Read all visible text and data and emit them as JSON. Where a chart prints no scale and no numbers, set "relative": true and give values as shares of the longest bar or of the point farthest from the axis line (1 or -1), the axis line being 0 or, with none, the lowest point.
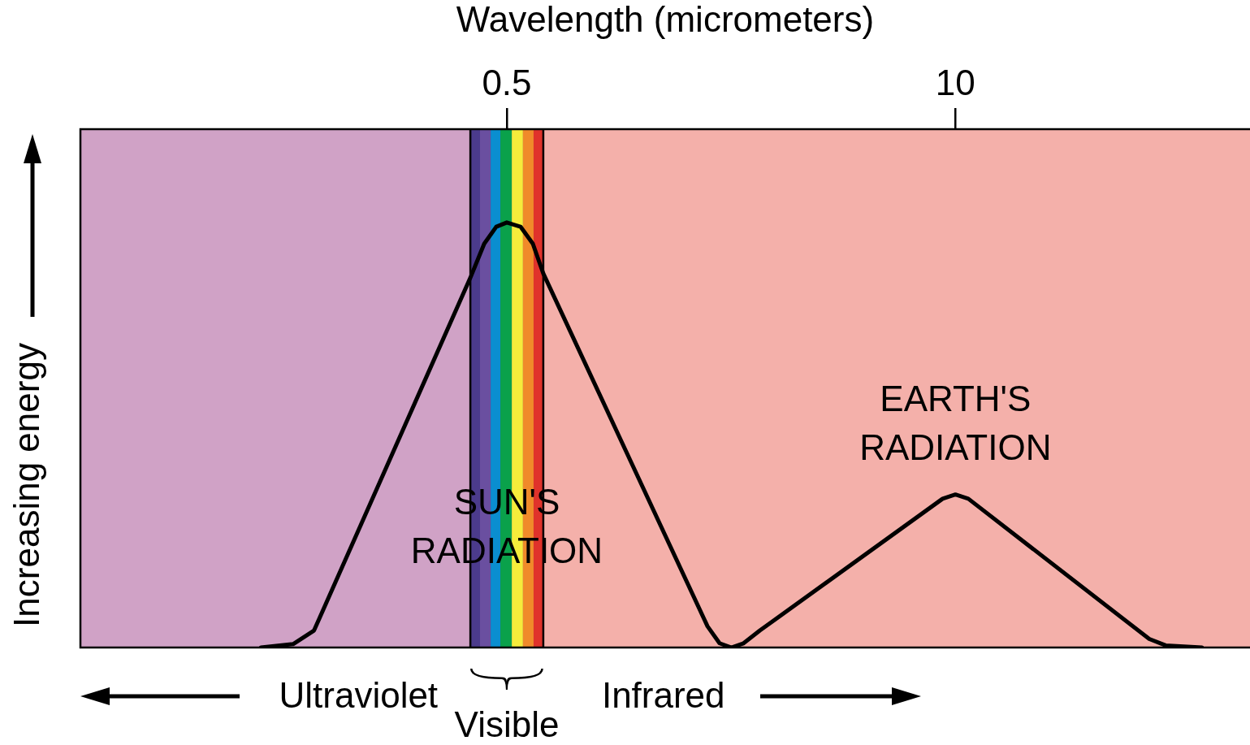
{
  "chart_data": {
    "type": "line",
    "xlabel": "Wavelength (micrometers)",
    "ylabel": "Increasing energy",
    "log": "x",
    "relative": true,
    "grid": false,
    "legend": false,
    "marker": "none",
    "xlim": [
      0.029,
      71.5
    ],
    "xticks": [
      0.5,
      10
    ],
    "series": [
      {
        "color": "#000000",
        "x": [
          0.0968,
          0.12,
          0.138,
          0.392,
          0.43,
          0.466,
          0.5,
          0.548,
          0.595,
          0.638,
          1.91,
          2.07,
          2.24
        ],
        "values": [
          0,
          0.008,
          0.04,
          0.87,
          0.95,
          0.99,
          1,
          0.99,
          0.95,
          0.88,
          0.05,
          0.01,
          0
        ]
      },
      {
        "color": "#000000",
        "x": [
          2.24,
          2.43,
          2.71,
          9.18,
          10,
          10.9,
          36.5,
          40.7,
          51.9
        ],
        "values": [
          0,
          0.01,
          0.04,
          0.35,
          0.36,
          0.35,
          0.02,
          0.005,
          0
        ]
      }
    ],
    "bands": [
      {
        "axis": "x",
        "from": 0.029,
        "to": 0.392,
        "label": "Ultraviolet",
        "color": "#d0a2c6"
      },
      {
        "axis": "x",
        "from": 0.638,
        "to": 71.5,
        "label": "Infrared",
        "color": "#f4b0aa"
      },
      {
        "axis": "x",
        "from": 0.392,
        "to": 0.638,
        "label": "Visible",
        "color": "#4b3b8c"
      },
      {
        "axis": "x",
        "from": 0.418,
        "to": 0.449,
        "color": "#6a4fa0"
      },
      {
        "axis": "x",
        "from": 0.449,
        "to": 0.479,
        "color": "#0a8ed0"
      },
      {
        "axis": "x",
        "from": 0.479,
        "to": 0.517,
        "color": "#0aa14b"
      },
      {
        "axis": "x",
        "from": 0.517,
        "to": 0.557,
        "color": "#f6ec3b"
      },
      {
        "axis": "x",
        "from": 0.557,
        "to": 0.598,
        "color": "#f08a2a"
      },
      {
        "axis": "x",
        "from": 0.598,
        "to": 0.638,
        "color": "#e0322b"
      }
    ],
    "ref_lines": [
      {
        "axis": "x",
        "value": 0.392,
        "color": "#000000"
      },
      {
        "axis": "x",
        "value": 0.638,
        "color": "#000000"
      }
    ],
    "annotations": [
      "SUN'S\nRADIATION",
      "EARTH'S\nRADIATION"
    ]
  }
}
